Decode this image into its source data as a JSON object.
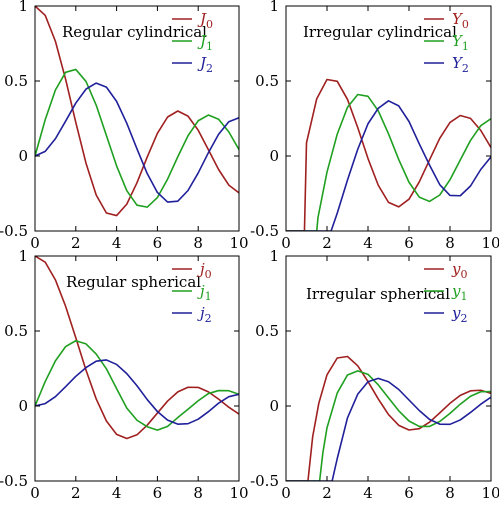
{
  "chart_data": [
    {
      "type": "line",
      "title": "Regular cylindrical",
      "xlim": [
        0,
        10
      ],
      "ylim": [
        -0.5,
        1
      ],
      "xticks": [
        "0",
        "2",
        "4",
        "6",
        "8",
        "10"
      ],
      "yticks": [
        "-0.5",
        "0",
        "0.5",
        "1"
      ],
      "legend_position": "top-right",
      "series": [
        {
          "name": "J",
          "sub": "0",
          "color": "#a02020",
          "x": [
            0,
            0.5,
            1,
            1.5,
            2,
            2.5,
            3,
            3.5,
            4,
            4.5,
            5,
            5.5,
            6,
            6.5,
            7,
            7.5,
            8,
            8.5,
            9,
            9.5,
            10
          ],
          "values": [
            1,
            0.938,
            0.765,
            0.512,
            0.224,
            -0.048,
            -0.26,
            -0.38,
            -0.397,
            -0.321,
            -0.178,
            -0.007,
            0.151,
            0.26,
            0.3,
            0.266,
            0.172,
            0.042,
            -0.09,
            -0.194,
            -0.246
          ]
        },
        {
          "name": "J",
          "sub": "1",
          "color": "#20a020",
          "x": [
            0,
            0.5,
            1,
            1.5,
            2,
            2.5,
            3,
            3.5,
            4,
            4.5,
            5,
            5.5,
            6,
            6.5,
            7,
            7.5,
            8,
            8.5,
            9,
            9.5,
            10
          ],
          "values": [
            0,
            0.242,
            0.44,
            0.558,
            0.577,
            0.497,
            0.339,
            0.137,
            -0.066,
            -0.231,
            -0.328,
            -0.341,
            -0.277,
            -0.154,
            -0.005,
            0.135,
            0.235,
            0.273,
            0.245,
            0.161,
            0.043
          ]
        },
        {
          "name": "J",
          "sub": "2",
          "color": "#20209a",
          "x": [
            0,
            0.5,
            1,
            1.5,
            2,
            2.5,
            3,
            3.5,
            4,
            4.5,
            5,
            5.5,
            6,
            6.5,
            7,
            7.5,
            8,
            8.5,
            9,
            9.5,
            10
          ],
          "values": [
            0,
            0.031,
            0.115,
            0.232,
            0.353,
            0.446,
            0.486,
            0.459,
            0.364,
            0.218,
            0.047,
            -0.117,
            -0.243,
            -0.307,
            -0.301,
            -0.23,
            -0.113,
            0.022,
            0.145,
            0.228,
            0.255
          ]
        }
      ]
    },
    {
      "type": "line",
      "title": "Irregular cylindrical",
      "xlim": [
        0,
        10
      ],
      "ylim": [
        -0.5,
        1
      ],
      "xticks": [
        "0",
        "2",
        "4",
        "6",
        "8",
        "10"
      ],
      "yticks": [
        "-0.5",
        "0",
        "0.5",
        "1"
      ],
      "legend_position": "top-right",
      "series": [
        {
          "name": "Y",
          "sub": "0",
          "color": "#a02020",
          "x": [
            0,
            0.5,
            0.9,
            1,
            1.5,
            2,
            2.5,
            3,
            3.5,
            4,
            4.5,
            5,
            5.5,
            6,
            6.5,
            7,
            7.5,
            8,
            8.5,
            9,
            9.5,
            10
          ],
          "values": [
            -0.5,
            -0.5,
            -0.5,
            0.088,
            0.382,
            0.51,
            0.498,
            0.377,
            0.189,
            -0.017,
            -0.195,
            -0.309,
            -0.339,
            -0.288,
            -0.173,
            -0.026,
            0.118,
            0.224,
            0.27,
            0.251,
            0.171,
            0.056
          ]
        },
        {
          "name": "Y",
          "sub": "1",
          "color": "#20a020",
          "x": [
            0,
            1,
            1.5,
            1.56,
            2,
            2.5,
            3,
            3.5,
            4,
            4.5,
            5,
            5.5,
            6,
            6.5,
            7,
            7.5,
            8,
            8.5,
            9,
            9.5,
            10
          ],
          "values": [
            -0.5,
            -0.5,
            -0.5,
            -0.41,
            -0.107,
            0.146,
            0.325,
            0.41,
            0.398,
            0.301,
            0.148,
            -0.024,
            -0.175,
            -0.274,
            -0.303,
            -0.26,
            -0.158,
            -0.027,
            0.104,
            0.202,
            0.249
          ]
        },
        {
          "name": "Y",
          "sub": "2",
          "color": "#20209a",
          "x": [
            0,
            1,
            2,
            2.2,
            2.5,
            3,
            3.5,
            4,
            4.5,
            5,
            5.5,
            6,
            6.5,
            7,
            7.5,
            8,
            8.5,
            9,
            9.5,
            10
          ],
          "values": [
            -0.5,
            -0.5,
            -0.5,
            -0.5,
            -0.381,
            -0.16,
            0.045,
            0.215,
            0.318,
            0.368,
            0.334,
            0.23,
            0.081,
            -0.06,
            -0.191,
            -0.263,
            -0.265,
            -0.2,
            -0.09,
            -0.006
          ]
        }
      ]
    },
    {
      "type": "line",
      "title": "Regular spherical",
      "xlim": [
        0,
        10
      ],
      "ylim": [
        -0.5,
        1
      ],
      "xticks": [
        "0",
        "2",
        "4",
        "6",
        "8",
        "10"
      ],
      "yticks": [
        "-0.5",
        "0",
        "0.5",
        "1"
      ],
      "legend_position": "top-right",
      "series": [
        {
          "name": "j",
          "sub": "0",
          "color": "#a02020",
          "x": [
            0,
            0.5,
            1,
            1.5,
            2,
            2.5,
            3,
            3.5,
            4,
            4.5,
            5,
            5.5,
            6,
            6.5,
            7,
            7.5,
            8,
            8.5,
            9,
            9.5,
            10
          ],
          "values": [
            1,
            0.959,
            0.841,
            0.665,
            0.455,
            0.239,
            0.047,
            -0.1,
            -0.189,
            -0.217,
            -0.192,
            -0.128,
            -0.047,
            0.033,
            0.094,
            0.125,
            0.124,
            0.094,
            0.046,
            -0.008,
            -0.054
          ]
        },
        {
          "name": "j",
          "sub": "1",
          "color": "#20a020",
          "x": [
            0,
            0.5,
            1,
            1.5,
            2,
            2.5,
            3,
            3.5,
            4,
            4.5,
            5,
            5.5,
            6,
            6.5,
            7,
            7.5,
            8,
            8.5,
            9,
            9.5,
            10
          ],
          "values": [
            0,
            0.163,
            0.301,
            0.396,
            0.435,
            0.414,
            0.346,
            0.248,
            0.116,
            -0.014,
            -0.095,
            -0.138,
            -0.161,
            -0.136,
            -0.077,
            -0.022,
            0.035,
            0.083,
            0.103,
            0.102,
            0.078
          ]
        },
        {
          "name": "j",
          "sub": "2",
          "color": "#20209a",
          "x": [
            0,
            0.5,
            1,
            1.5,
            2,
            2.5,
            3,
            3.5,
            4,
            4.5,
            5,
            5.5,
            6,
            6.5,
            7,
            7.5,
            8,
            8.5,
            9,
            9.5,
            10
          ],
          "values": [
            0,
            0.016,
            0.062,
            0.129,
            0.198,
            0.256,
            0.299,
            0.307,
            0.277,
            0.216,
            0.135,
            0.043,
            -0.037,
            -0.094,
            -0.121,
            -0.118,
            -0.088,
            -0.038,
            0.019,
            0.062,
            0.078
          ]
        }
      ]
    },
    {
      "type": "line",
      "title": "Irregular spherical",
      "xlim": [
        0,
        10
      ],
      "ylim": [
        -0.5,
        1
      ],
      "xticks": [
        "0",
        "2",
        "4",
        "6",
        "8",
        "10"
      ],
      "yticks": [
        "-0.5",
        "0",
        "0.5",
        "1"
      ],
      "legend_position": "top-right",
      "series": [
        {
          "name": "y",
          "sub": "0",
          "color": "#a02020",
          "x": [
            0,
            1,
            1.07,
            1.3,
            1.6,
            2,
            2.5,
            3,
            3.5,
            4,
            4.5,
            5,
            5.5,
            6,
            6.5,
            7,
            7.5,
            8,
            8.5,
            9,
            9.5,
            10
          ],
          "values": [
            -0.5,
            -0.5,
            -0.5,
            -0.206,
            0.018,
            0.208,
            0.32,
            0.33,
            0.268,
            0.163,
            0.047,
            -0.057,
            -0.129,
            -0.16,
            -0.151,
            -0.108,
            -0.046,
            0.018,
            0.071,
            0.101,
            0.105,
            0.084
          ]
        },
        {
          "name": "y",
          "sub": "1",
          "color": "#20a020",
          "x": [
            0,
            1.5,
            1.64,
            1.8,
            2,
            2.5,
            3,
            3.5,
            4,
            4.5,
            5,
            5.5,
            6,
            6.5,
            7,
            7.5,
            8,
            8.5,
            9,
            9.5,
            10
          ],
          "values": [
            -0.5,
            -0.5,
            -0.5,
            -0.31,
            -0.145,
            0.087,
            0.207,
            0.234,
            0.211,
            0.141,
            0.054,
            -0.032,
            -0.1,
            -0.136,
            -0.136,
            -0.103,
            -0.049,
            0.012,
            0.065,
            0.095,
            0.096
          ]
        },
        {
          "name": "y",
          "sub": "2",
          "color": "#20209a",
          "x": [
            0,
            2,
            2.25,
            2.5,
            3,
            3.5,
            4,
            4.5,
            5,
            5.5,
            6,
            6.5,
            7,
            7.5,
            8,
            8.5,
            9,
            9.5,
            10
          ],
          "values": [
            -0.5,
            -0.5,
            -0.5,
            -0.35,
            -0.079,
            0.079,
            0.162,
            0.184,
            0.162,
            0.11,
            0.04,
            -0.03,
            -0.089,
            -0.121,
            -0.122,
            -0.093,
            -0.043,
            0.012,
            0.059
          ]
        }
      ]
    }
  ]
}
